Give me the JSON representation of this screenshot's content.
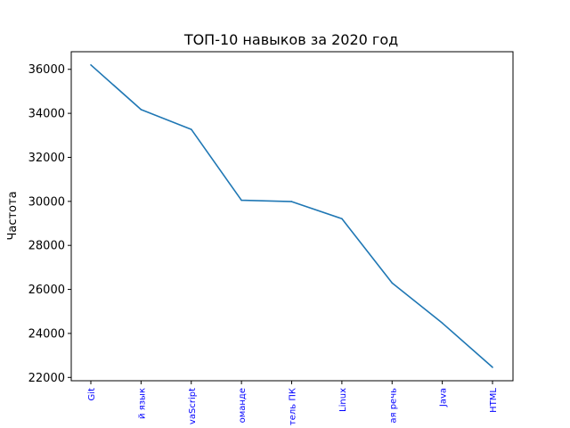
{
  "chart_data": {
    "type": "line",
    "title": "ТОП-10 навыков за 2020 год",
    "xlabel": "",
    "ylabel": "Частота",
    "categories": [
      "Git",
      "й язык",
      "vaScript",
      "оманде",
      "тель ПК",
      "Linux",
      "ая речь",
      "Java",
      "HTML"
    ],
    "series": [
      {
        "values": [
          36200,
          34170,
          33270,
          30050,
          29990,
          29210,
          26290,
          24470,
          22460
        ]
      }
    ],
    "ylim": [
      21850,
      36800
    ],
    "yticks": [
      22000,
      24000,
      26000,
      28000,
      30000,
      32000,
      34000,
      36000
    ],
    "grid": false,
    "line_color": "#1f77b4",
    "xtick_color": "#0000ff"
  }
}
